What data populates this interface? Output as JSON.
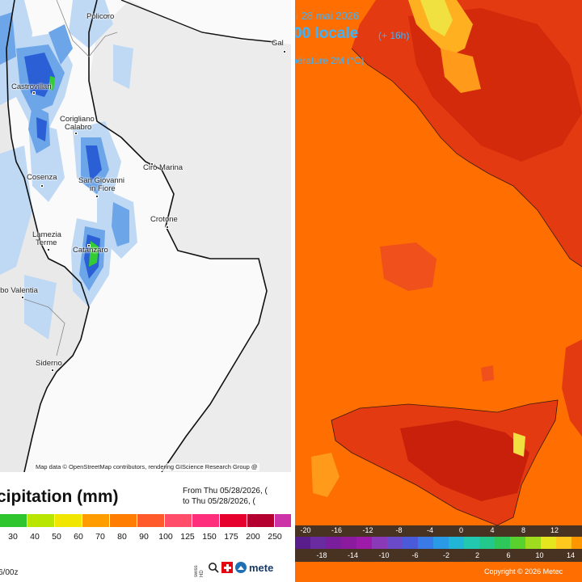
{
  "precip_panel": {
    "title": "cipitation (mm)",
    "period_from": "From Thu 05/28/2026, (",
    "period_to": "to Thu 05/28/2026, (",
    "attribution": "Map data © OpenStreetMap contributors, rendering GIScience Research Group @",
    "run_text": "6/00z",
    "logo_text": "mete",
    "logo_vertical_text": "swiss HD",
    "cities": [
      {
        "name": "Policoro"
      },
      {
        "name": "Castrovillari"
      },
      {
        "name": "Corigliano"
      },
      {
        "name": "Calabro"
      },
      {
        "name": "Cirò Marina"
      },
      {
        "name": "Cosenza"
      },
      {
        "name": "San Giovanni"
      },
      {
        "name": "in Fiore"
      },
      {
        "name": "Crotone"
      },
      {
        "name": "Lamezia"
      },
      {
        "name": "Terme"
      },
      {
        "name": "Catanzaro"
      },
      {
        "name": "ibo Valentia"
      },
      {
        "name": "Siderno"
      },
      {
        "name": "Gal"
      }
    ],
    "scale_labels": [
      "30",
      "40",
      "50",
      "60",
      "70",
      "80",
      "90",
      "100",
      "125",
      "150",
      "175",
      "200",
      "250",
      "3"
    ],
    "scale_colors": [
      "#2ec52e",
      "#b8e600",
      "#f0e600",
      "#ff9d00",
      "#ff7d00",
      "#ff5a2a",
      "#ff4d6a",
      "#ff2e7d",
      "#e6002e",
      "#b3002e",
      "#cc33a6",
      "#d94dd9",
      "#e680e6"
    ]
  },
  "temp_panel": {
    "date": "i 28 mai 2026",
    "time": "00 locale",
    "offset": "(+ 16h)",
    "variable": "pérature 2M (°C)",
    "copyright": "Copyright © 2026 Metec",
    "scale_top_labels": [
      "-20",
      "-16",
      "-12",
      "-8",
      "-4",
      "0",
      "4",
      "8",
      "12",
      "1"
    ],
    "scale_bottom_labels": [
      "-18",
      "-14",
      "-10",
      "-6",
      "-2",
      "2",
      "6",
      "10",
      "14"
    ],
    "scale_colors": [
      "#5a1e8c",
      "#6a2aa0",
      "#7a1e9e",
      "#8c1a9e",
      "#9e1aa8",
      "#8a3ab8",
      "#6a4ac8",
      "#4a5ad8",
      "#3a7ae6",
      "#2a9ae6",
      "#22b6d6",
      "#22c8b0",
      "#22c88c",
      "#2ec85a",
      "#5ad22e",
      "#a0dc1e",
      "#e6e61e",
      "#ffc81e",
      "#ff9600"
    ]
  }
}
